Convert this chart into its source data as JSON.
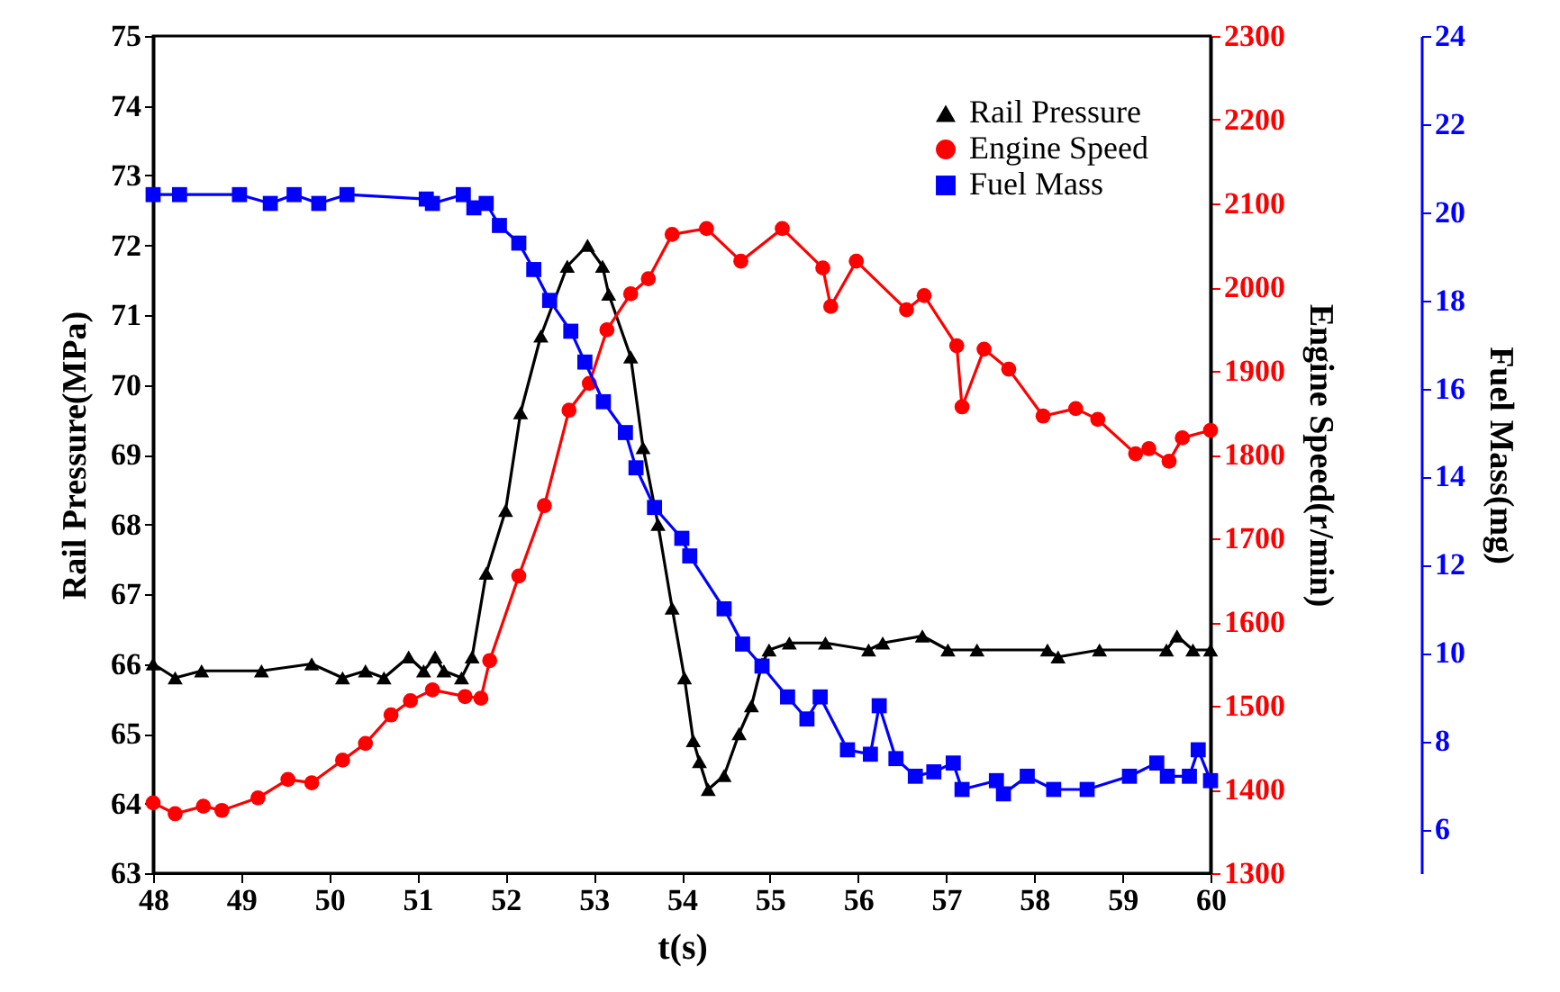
{
  "chart_data": {
    "type": "line",
    "xlabel": "t(s)",
    "ylabel": "Rail Pressure(MPa)",
    "y2label": "Engine Speed(r/min)",
    "y3label": "Fuel Mass(mg)",
    "xlim": [
      48,
      60
    ],
    "xticks": [
      48,
      49,
      50,
      51,
      52,
      53,
      54,
      55,
      56,
      57,
      58,
      59,
      60
    ],
    "ylim": [
      63,
      75
    ],
    "yticks": [
      63,
      64,
      65,
      66,
      67,
      68,
      69,
      70,
      71,
      72,
      73,
      74,
      75
    ],
    "y2lim": [
      1300,
      2300
    ],
    "y2ticks": [
      1300,
      1400,
      1500,
      1600,
      1700,
      1800,
      1900,
      2000,
      2100,
      2200,
      2300
    ],
    "y3lim": [
      5,
      24
    ],
    "y3ticks": [
      6,
      8,
      10,
      12,
      14,
      16,
      18,
      20,
      22,
      24
    ],
    "legend": "top right",
    "series": [
      {
        "name": "Rail Pressure",
        "color": "#000000",
        "axis": "y",
        "marker": "triangle",
        "x": [
          48,
          48.25,
          48.55,
          49.23,
          49.8,
          50.15,
          50.41,
          50.62,
          50.9,
          51.07,
          51.2,
          51.3,
          51.5,
          51.62,
          51.78,
          52.0,
          52.17,
          52.4,
          52.7,
          52.93,
          53.1,
          53.17,
          53.42,
          53.56,
          53.73,
          53.89,
          54.03,
          54.13,
          54.2,
          54.3,
          54.48,
          54.65,
          54.79,
          54.91,
          54.99,
          55.22,
          55.63,
          56.12,
          56.28,
          56.73,
          57.02,
          57.35,
          58.15,
          58.27,
          58.74,
          59.5,
          59.62,
          59.8,
          60
        ],
        "values": [
          66.0,
          65.8,
          65.9,
          65.9,
          66.0,
          65.8,
          65.9,
          65.8,
          66.1,
          65.9,
          66.1,
          65.9,
          65.8,
          66.1,
          67.3,
          68.2,
          69.6,
          70.7,
          71.7,
          72.0,
          71.7,
          71.3,
          70.4,
          69.1,
          68.0,
          66.8,
          65.8,
          64.9,
          64.6,
          64.2,
          64.4,
          65.0,
          65.4,
          66.0,
          66.2,
          66.3,
          66.3,
          66.2,
          66.3,
          66.4,
          66.2,
          66.2,
          66.2,
          66.1,
          66.2,
          66.2,
          66.4,
          66.2,
          66.2
        ]
      },
      {
        "name": "Engine Speed",
        "color": "#ff0000",
        "axis": "y2",
        "marker": "circle",
        "x": [
          48,
          48.25,
          48.57,
          48.78,
          49.19,
          49.53,
          49.8,
          50.15,
          50.41,
          50.7,
          50.92,
          51.17,
          51.54,
          51.72,
          51.82,
          52.15,
          52.44,
          52.72,
          52.95,
          53.15,
          53.42,
          53.62,
          53.89,
          54.28,
          54.67,
          55.14,
          55.6,
          55.69,
          55.98,
          56.55,
          56.75,
          57.12,
          57.18,
          57.43,
          57.71,
          58.1,
          58.47,
          58.72,
          59.15,
          59.3,
          59.53,
          59.68,
          60
        ],
        "values": [
          1384,
          1371,
          1380,
          1375,
          1390,
          1412,
          1408,
          1435,
          1455,
          1489,
          1506,
          1519,
          1511,
          1509,
          1554,
          1655,
          1739,
          1853,
          1885,
          1949,
          1992,
          2010,
          2063,
          2070,
          2031,
          2070,
          2023,
          1977,
          2031,
          1973,
          1990,
          1930,
          1857,
          1926,
          1902,
          1846,
          1855,
          1842,
          1801,
          1807,
          1792,
          1820,
          1829
        ]
      },
      {
        "name": "Fuel Mass",
        "color": "#0000ff",
        "axis": "y3",
        "marker": "square",
        "x": [
          48,
          48.3,
          48.98,
          49.33,
          49.6,
          49.88,
          50.2,
          51.1,
          51.17,
          51.52,
          51.64,
          51.78,
          51.93,
          52.15,
          52.32,
          52.5,
          52.74,
          52.9,
          53.11,
          53.36,
          53.48,
          53.69,
          54.0,
          54.09,
          54.48,
          54.69,
          54.91,
          55.2,
          55.42,
          55.57,
          55.88,
          56.14,
          56.24,
          56.43,
          56.65,
          56.86,
          57.08,
          57.18,
          57.57,
          57.65,
          57.92,
          58.22,
          58.6,
          59.08,
          59.39,
          59.51,
          59.76,
          59.86,
          60
        ],
        "values": [
          20.4,
          20.4,
          20.4,
          20.2,
          20.4,
          20.2,
          20.4,
          20.3,
          20.2,
          20.4,
          20.1,
          20.2,
          19.7,
          19.3,
          18.7,
          18.0,
          17.3,
          16.6,
          15.7,
          15.0,
          14.2,
          13.3,
          12.6,
          12.2,
          11.0,
          10.2,
          9.7,
          9.0,
          8.5,
          9.0,
          7.8,
          7.7,
          8.8,
          7.6,
          7.2,
          7.3,
          7.5,
          6.9,
          7.1,
          6.8,
          7.2,
          6.9,
          6.9,
          7.2,
          7.5,
          7.2,
          7.2,
          7.8,
          7.1
        ]
      }
    ]
  }
}
